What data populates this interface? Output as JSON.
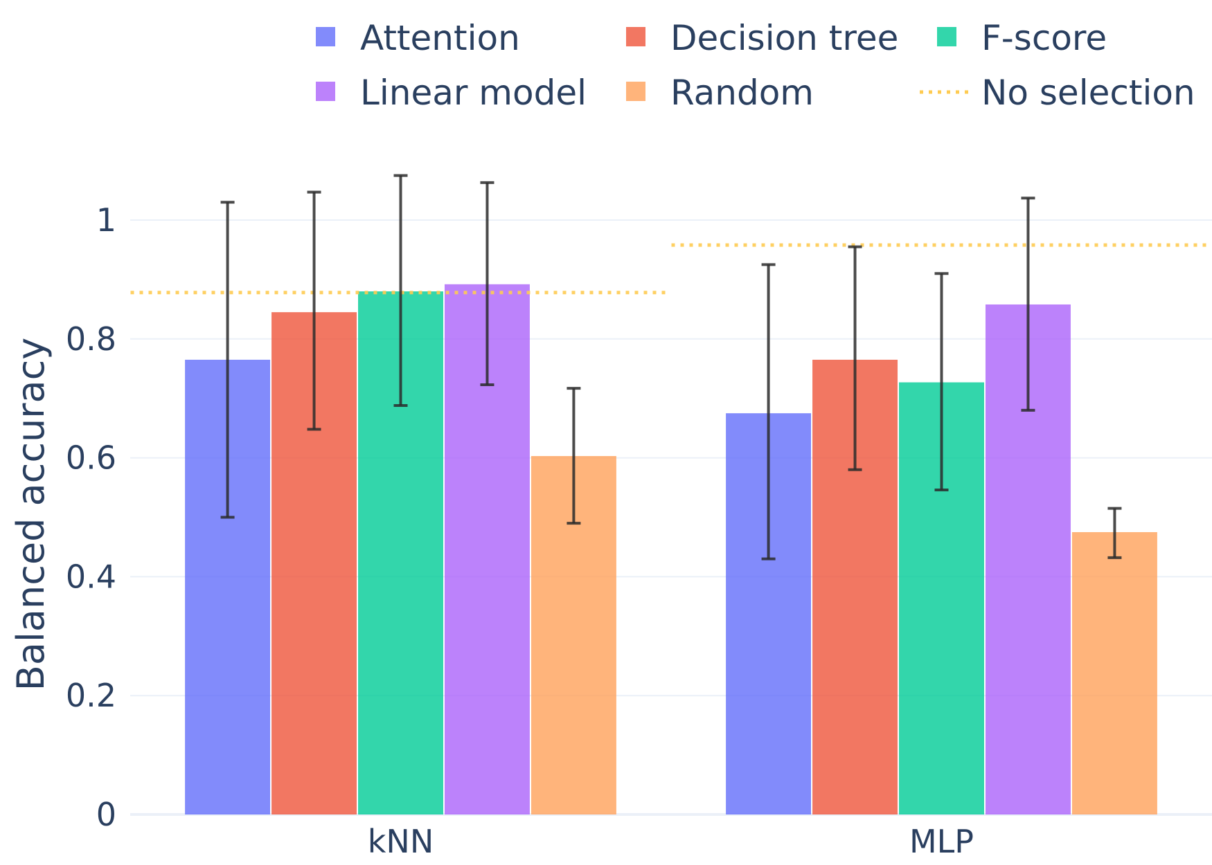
{
  "chart_data": {
    "type": "bar",
    "title": "",
    "xlabel": "",
    "ylabel": "Balanced accuracy",
    "categories": [
      "kNN",
      "MLP"
    ],
    "ylim": [
      0,
      1.15
    ],
    "yticks": [
      0,
      0.2,
      0.4,
      0.6,
      0.8,
      1
    ],
    "ytick_labels": [
      "0",
      "0.2",
      "0.4",
      "0.6",
      "0.8",
      "1"
    ],
    "grid": true,
    "legend_position": "top",
    "series": [
      {
        "name": "Attention",
        "color": "#636efa",
        "values": [
          0.765,
          0.675
        ],
        "error_low": [
          0.5,
          0.43
        ],
        "error_high": [
          1.03,
          0.925
        ]
      },
      {
        "name": "Decision tree",
        "color": "#ef553b",
        "values": [
          0.845,
          0.765
        ],
        "error_low": [
          0.648,
          0.58
        ],
        "error_high": [
          1.047,
          0.955
        ]
      },
      {
        "name": "F-score",
        "color": "#00cc96",
        "values": [
          0.88,
          0.727
        ],
        "error_low": [
          0.688,
          0.546
        ],
        "error_high": [
          1.075,
          0.91
        ]
      },
      {
        "name": "Linear model",
        "color": "#ab63fa",
        "values": [
          0.892,
          0.858
        ],
        "error_low": [
          0.723,
          0.68
        ],
        "error_high": [
          1.063,
          1.037
        ]
      },
      {
        "name": "Random",
        "color": "#ffa15a",
        "values": [
          0.603,
          0.475
        ],
        "error_low": [
          0.49,
          0.432
        ],
        "error_high": [
          0.717,
          0.515
        ]
      }
    ],
    "reference_lines": {
      "name": "No selection",
      "color": "#fecb52",
      "style": "dotted",
      "values": [
        0.878,
        0.958
      ]
    }
  }
}
